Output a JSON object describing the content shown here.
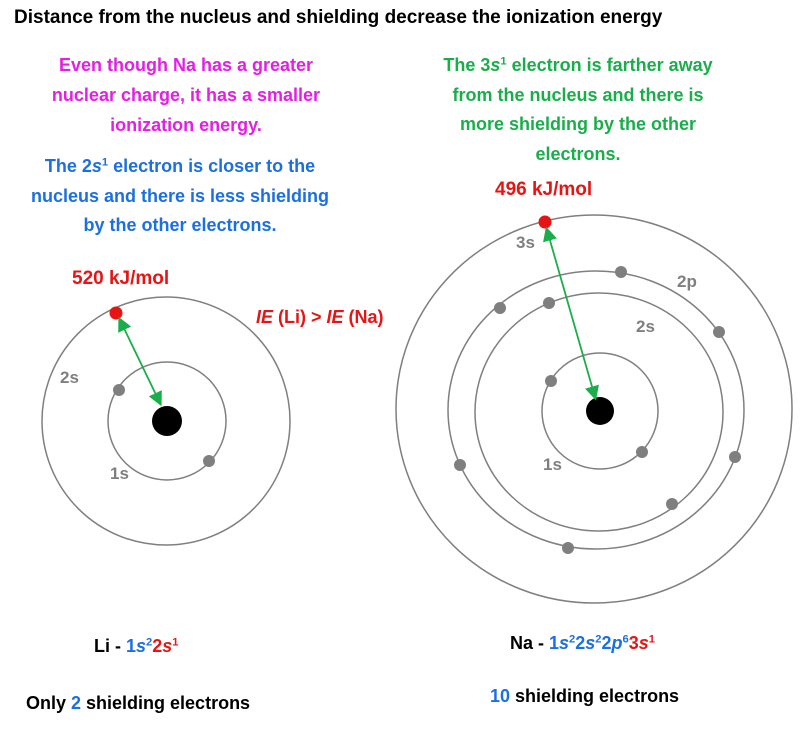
{
  "title": "Distance from the nucleus and shielding decrease the ionization energy",
  "colors": {
    "magenta": "#e41ee4",
    "blue": "#1c6fe3",
    "green": "#1aae4a",
    "red": "#e81414",
    "gray": "#7f7f7f",
    "nucleus": "#000000"
  },
  "li_note": [
    "Even though Na has a greater",
    "nuclear charge, it has a smaller",
    "ionization energy."
  ],
  "li_reason": {
    "l1_a": "The 2",
    "l1_b": "s",
    "l1_sup": "1",
    "l1_c": " electron is closer to the",
    "l2": "nucleus and there is less shielding",
    "l3": "by the other electrons."
  },
  "na_reason": {
    "l1_a": "The 3",
    "l1_b": "s",
    "l1_sup": "1",
    "l1_c": " electron is farther away",
    "l2": "from the nucleus and there is",
    "l3": "more shielding by the other",
    "l4": "electrons."
  },
  "comparison": {
    "ie1": "IE",
    "li": " (Li) > ",
    "ie2": "IE",
    "na": " (Na)"
  },
  "li_atom": {
    "energy": "520 kJ/mol",
    "shells": [
      "1s",
      "2s"
    ]
  },
  "na_atom": {
    "energy": "496 kJ/mol",
    "shells": [
      "1s",
      "2s",
      "2p",
      "3s"
    ]
  },
  "li_config": {
    "element": "Li - ",
    "p1": "1",
    "p1s": "s",
    "p1e": "2",
    "p2": "2",
    "p2s": "s",
    "p2e": "1"
  },
  "na_config": {
    "element": "Na - ",
    "p1": "1",
    "p1s": "s",
    "p1e": "2",
    "p2": "2",
    "p2s": "s",
    "p2e": "2",
    "p3": "2",
    "p3s": "p",
    "p3e": "6",
    "p4": "3",
    "p4s": "s",
    "p4e": "1"
  },
  "li_shielding": {
    "pre": "Only ",
    "num": "2",
    "post": " shielding electrons"
  },
  "na_shielding": {
    "num": "10",
    "post": " shielding electrons"
  }
}
